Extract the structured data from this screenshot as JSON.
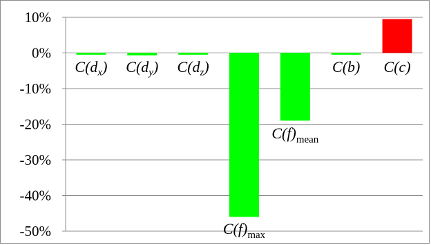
{
  "chart_data": {
    "type": "bar",
    "categories": [
      "C(dx)",
      "C(dy)",
      "C(dz)",
      "C(f)max",
      "C(f)mean",
      "C(b)",
      "C(c)"
    ],
    "values": [
      -0.5,
      -0.7,
      -0.5,
      -46,
      -19,
      -0.5,
      9.5
    ],
    "ylim": [
      -50,
      10
    ],
    "yticks": [
      "10%",
      "0%",
      "-10%",
      "-20%",
      "-30%",
      "-40%",
      "-50%"
    ],
    "grid": true,
    "legend": "none",
    "labels": [
      {
        "base": "C(d",
        "sub": "x",
        "tail": ")"
      },
      {
        "base": "C(d",
        "sub": "y",
        "tail": ")"
      },
      {
        "base": "C(d",
        "sub": "z",
        "tail": ")"
      },
      {
        "base": "C(f)",
        "sub": "max",
        "tail": ""
      },
      {
        "base": "C(f)",
        "sub": "mean",
        "tail": ""
      },
      {
        "base": "C(b)",
        "sub": "",
        "tail": ""
      },
      {
        "base": "C(c)",
        "sub": "",
        "tail": ""
      }
    ],
    "colors": {
      "negative": "#00ff00",
      "positive": "#ff0000",
      "grid": "#8c8c8c",
      "axis": "#8c8c8c"
    }
  }
}
